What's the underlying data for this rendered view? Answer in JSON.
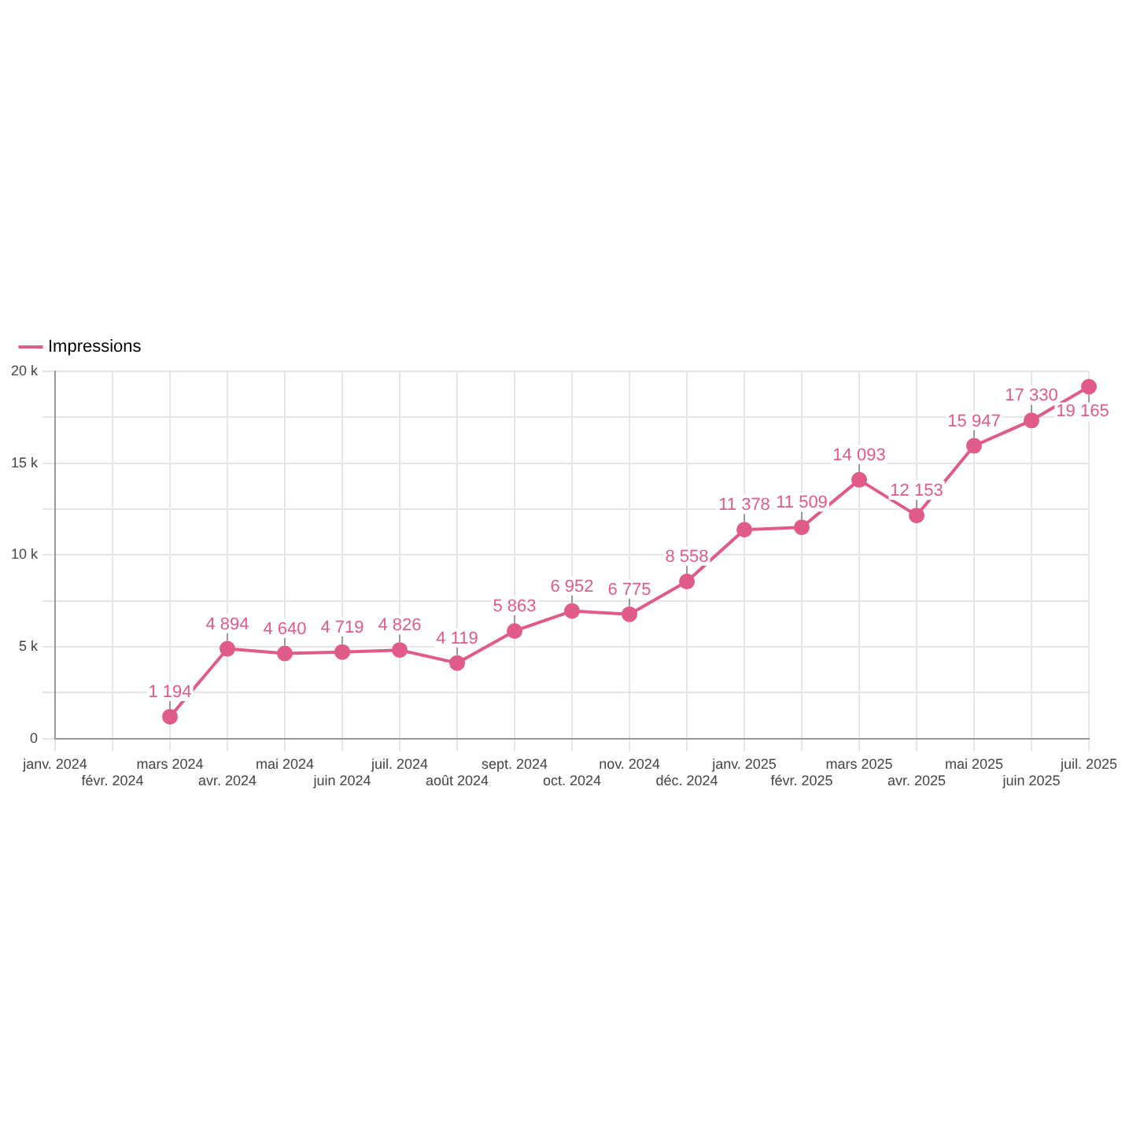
{
  "chart_data": {
    "type": "line",
    "categories": [
      "janv. 2024",
      "févr. 2024",
      "mars 2024",
      "avr. 2024",
      "mai 2024",
      "juin 2024",
      "juil. 2024",
      "août 2024",
      "sept. 2024",
      "oct. 2024",
      "nov. 2024",
      "déc. 2024",
      "janv. 2025",
      "févr. 2025",
      "mars 2025",
      "avr. 2025",
      "mai 2025",
      "juin 2025",
      "juil. 2025"
    ],
    "series": [
      {
        "name": "Impressions",
        "color": "#e05a8a",
        "values": [
          null,
          null,
          1194,
          4894,
          4640,
          4719,
          4826,
          4119,
          5863,
          6952,
          6775,
          8558,
          11378,
          11509,
          14093,
          12153,
          15947,
          17330,
          19165
        ],
        "value_labels": [
          null,
          null,
          "1 194",
          "4 894",
          "4 640",
          "4 719",
          "4 826",
          "4 119",
          "5 863",
          "6 952",
          "6 775",
          "8 558",
          "11 378",
          "11 509",
          "14 093",
          "12 153",
          "15 947",
          "17 330",
          "19 165"
        ]
      }
    ],
    "ylim": [
      0,
      20000
    ],
    "yticks": [
      0,
      {
        "value": 2500,
        "label": null
      },
      {
        "value": 5000,
        "label": "5 k"
      },
      {
        "value": 7500,
        "label": null
      },
      {
        "value": 10000,
        "label": "10 k"
      },
      {
        "value": 12500,
        "label": null
      },
      {
        "value": 15000,
        "label": "15 k"
      },
      {
        "value": 17500,
        "label": null
      },
      {
        "value": 20000,
        "label": "20 k"
      }
    ],
    "grid": true,
    "legend": "top left",
    "marker": "circle",
    "line_style": "solid"
  }
}
